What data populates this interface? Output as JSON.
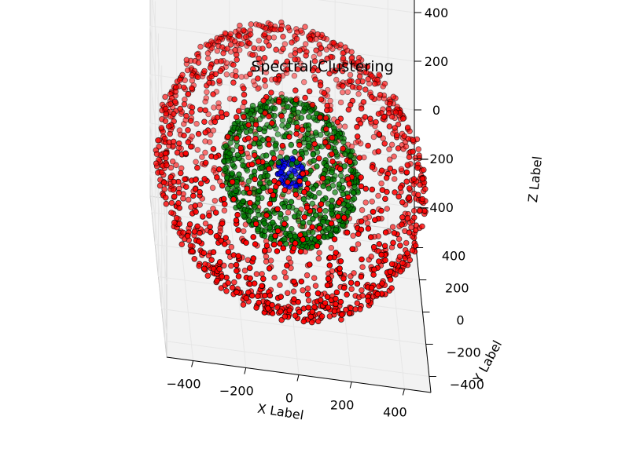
{
  "chart_data": {
    "type": "scatter",
    "projection": "3d",
    "title": "Spectral Clustering",
    "xlabel": "X Label",
    "ylabel": "Y Label",
    "zlabel": "Z Label",
    "xlim": [
      -500,
      500
    ],
    "ylim": [
      -500,
      500
    ],
    "zlim": [
      -500,
      500
    ],
    "x_ticks": [
      -400,
      -200,
      0,
      200,
      400
    ],
    "y_ticks": [
      -400,
      -200,
      0,
      200,
      400
    ],
    "z_ticks": [
      -400,
      -200,
      0,
      200,
      400
    ],
    "x_tick_labels": [
      "−400",
      "−200",
      "0",
      "200",
      "400"
    ],
    "y_tick_labels": [
      "−400",
      "−200",
      "0",
      "200",
      "400"
    ],
    "z_tick_labels": [
      "−400",
      "−200",
      "0",
      "200",
      "400"
    ],
    "grid": true,
    "legend": false,
    "series": [
      {
        "shape": "sphere",
        "radius": 500,
        "count": 1500,
        "color": "#ff0000"
      },
      {
        "shape": "sphere",
        "radius": 250,
        "count": 700,
        "color": "#008000"
      },
      {
        "shape": "sphere",
        "radius": 50,
        "count": 60,
        "color": "#0000ff"
      }
    ],
    "pane_color": "#f2f2f2",
    "grid_color": "#e6e6e6"
  }
}
